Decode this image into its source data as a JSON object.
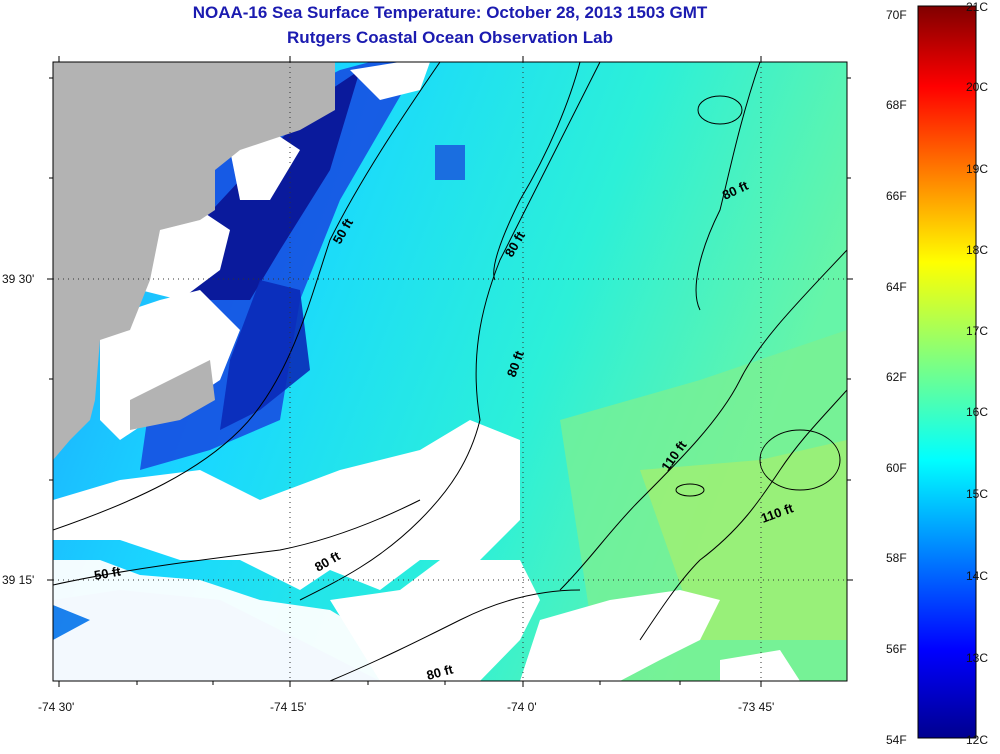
{
  "title": {
    "line1": "NOAA-16 Sea Surface Temperature:  October 28, 2013 1503 GMT",
    "line2": "Rutgers Coastal Ocean Observation Lab"
  },
  "axes": {
    "x_ticks": [
      "-74 30'",
      "-74 15'",
      "-74 0'",
      "-73 45'"
    ],
    "y_ticks": [
      "39 30'",
      "39 15'"
    ]
  },
  "depth_contours": [
    {
      "label": "50 ft"
    },
    {
      "label": "80 ft"
    },
    {
      "label": "80 ft"
    },
    {
      "label": "80 ft"
    },
    {
      "label": "110 ft"
    },
    {
      "label": "110 ft"
    },
    {
      "label": "50 ft"
    },
    {
      "label": "80 ft"
    },
    {
      "label": "80 ft"
    }
  ],
  "colorbar": {
    "fahrenheit": [
      "70F",
      "68F",
      "66F",
      "64F",
      "62F",
      "60F",
      "58F",
      "56F",
      "54F"
    ],
    "celsius": [
      "21C",
      "20C",
      "19C",
      "18C",
      "17C",
      "16C",
      "15C",
      "14C",
      "13C",
      "12C"
    ]
  },
  "colors": {
    "land": "#b3b3b3",
    "no_data": "#ffffff",
    "title": "#1b1bb0"
  }
}
